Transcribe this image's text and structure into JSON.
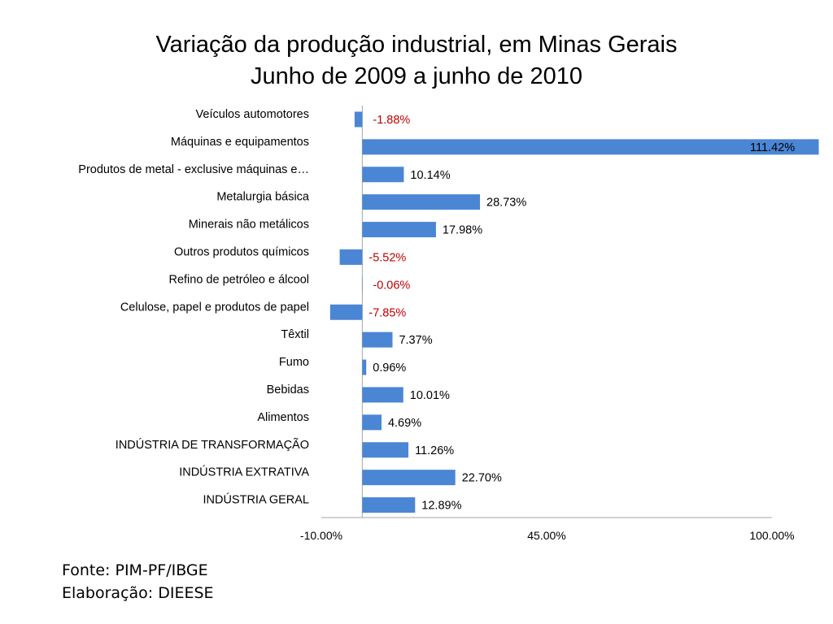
{
  "title_line1": "Variação da produção industrial, em Minas Gerais",
  "title_line2": "Junho de 2009 a junho de 2010",
  "footer": {
    "source": "Fonte: PIM-PF/IBGE",
    "author": "Elaboração: DIEESE"
  },
  "colors": {
    "bar": "#4a86d4",
    "negative_label": "#c00000",
    "positive_label": "#000000",
    "axis": "#a6a6a6"
  },
  "chart_data": {
    "type": "bar",
    "orientation": "horizontal",
    "title": "Variação da produção industrial, em Minas Gerais Junho de 2009 a junho de 2010",
    "categories": [
      "Veículos automotores",
      "Máquinas e equipamentos",
      "Produtos de metal - exclusive máquinas e…",
      "Metalurgia básica",
      "Minerais não metálicos",
      "Outros produtos químicos",
      "Refino de petróleo e álcool",
      "Celulose, papel e produtos de papel",
      "Têxtil",
      "Fumo",
      "Bebidas",
      "Alimentos",
      "INDÚSTRIA DE TRANSFORMAÇÃO",
      "INDÚSTRIA EXTRATIVA",
      "INDÚSTRIA GERAL"
    ],
    "values": [
      -1.88,
      111.42,
      10.14,
      28.73,
      17.98,
      -5.52,
      -0.06,
      -7.85,
      7.37,
      0.96,
      10.01,
      4.69,
      11.26,
      22.7,
      12.89
    ],
    "value_labels": [
      "-1.88%",
      "111.42%",
      "10.14%",
      "28.73%",
      "17.98%",
      "-5.52%",
      "-0.06%",
      "-7.85%",
      "7.37%",
      "0.96%",
      "10.01%",
      "4.69%",
      "11.26%",
      "22.70%",
      "12.89%"
    ],
    "xlim": [
      -10,
      100
    ],
    "x_ticks": [
      -10,
      45,
      100
    ],
    "x_tick_labels": [
      "-10.00%",
      "45.00%",
      "100.00%"
    ],
    "xlabel": "",
    "ylabel": "",
    "grid": false,
    "legend": "none"
  }
}
